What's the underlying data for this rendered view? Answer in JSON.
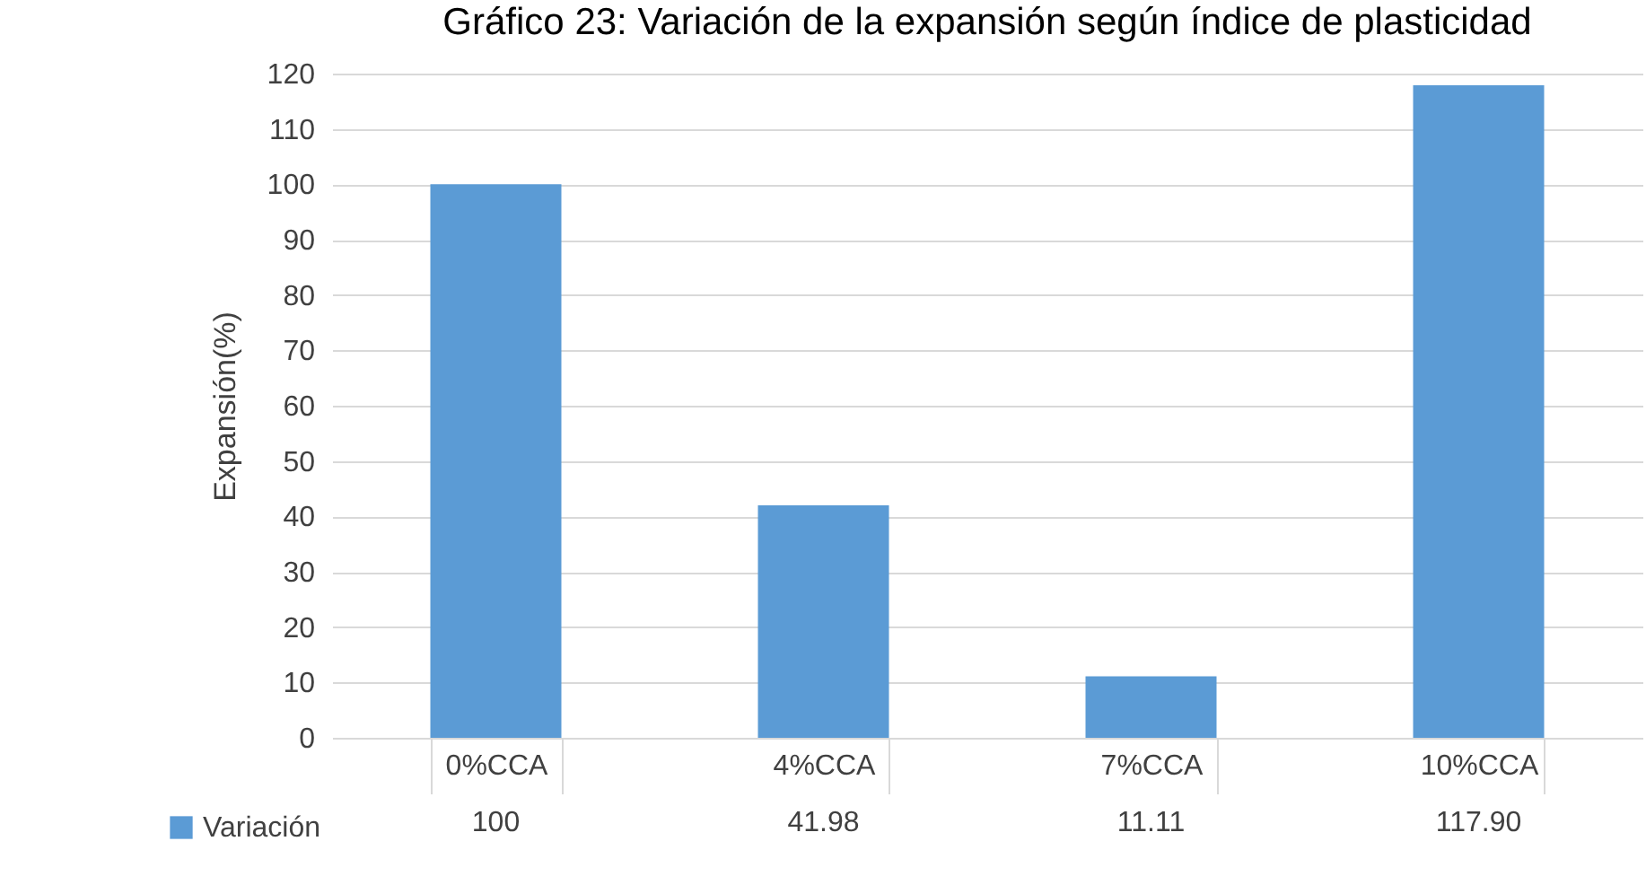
{
  "chart_data": {
    "type": "bar",
    "title": "Gráfico 23: Variación de la expansión según índice de plasticidad",
    "ylabel": "Expansión(%)",
    "categories": [
      "0%CCA",
      "4%CCA",
      "7%CCA",
      "10%CCA"
    ],
    "series": [
      {
        "name": "Variación",
        "color": "#5b9bd5",
        "values": [
          100,
          41.98,
          11.11,
          117.9
        ],
        "value_labels": [
          "100",
          "41.98",
          "11.11",
          "117.90"
        ]
      }
    ],
    "ylim": [
      0,
      120
    ],
    "yticks": [
      0,
      10,
      20,
      30,
      40,
      50,
      60,
      70,
      80,
      90,
      100,
      110,
      120
    ],
    "grid": "y",
    "legend": "bottom"
  }
}
